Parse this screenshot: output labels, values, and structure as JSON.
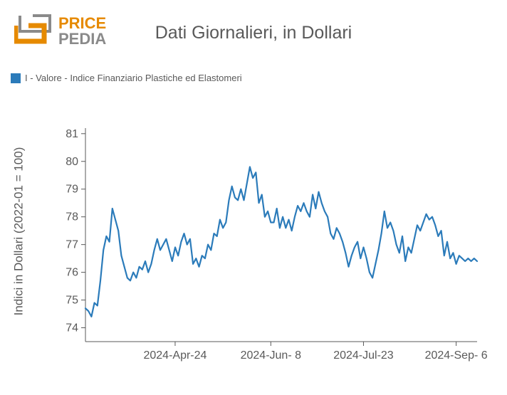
{
  "logo": {
    "text_top": "PRICE",
    "text_bottom": "PEDIA",
    "color_top": "#e68a00",
    "color_bottom": "#8a8a8a",
    "mark_color_outer": "#8a8a8a",
    "mark_color_inner": "#e68a00"
  },
  "title": "Dati Giornalieri, in Dollari",
  "legend": {
    "swatch_color": "#2b7bba",
    "label": "I - Valore - Indice Finanziario Plastiche ed Elastomeri"
  },
  "chart": {
    "type": "line",
    "line_color": "#2b7bba",
    "line_width": 2.2,
    "background_color": "#ffffff",
    "axis_color": "#595959",
    "axis_width": 1,
    "ylabel": "Indici in Dollari (2022-01 = 100)",
    "ylabel_fontsize": 17,
    "tick_fontsize": 16,
    "ylim": [
      73.5,
      81.2
    ],
    "yticks": [
      74,
      75,
      76,
      77,
      78,
      79,
      80,
      81
    ],
    "xlim": [
      0,
      131
    ],
    "xticks": [
      {
        "pos": 30,
        "label": "2024-Apr-24"
      },
      {
        "pos": 62,
        "label": "2024-Jun- 8"
      },
      {
        "pos": 93,
        "label": "2024-Jul-23"
      },
      {
        "pos": 124,
        "label": "2024-Sep- 6"
      }
    ],
    "series": [
      74.7,
      74.6,
      74.4,
      74.9,
      74.8,
      75.7,
      76.8,
      77.3,
      77.1,
      78.3,
      77.9,
      77.5,
      76.6,
      76.2,
      75.8,
      75.7,
      76.0,
      75.8,
      76.2,
      76.1,
      76.4,
      76.0,
      76.3,
      76.8,
      77.2,
      76.8,
      77.0,
      77.2,
      76.8,
      76.4,
      76.9,
      76.6,
      77.1,
      77.4,
      77.0,
      77.2,
      76.3,
      76.5,
      76.2,
      76.6,
      76.5,
      77.0,
      76.8,
      77.4,
      77.3,
      77.9,
      77.6,
      77.8,
      78.6,
      79.1,
      78.7,
      78.6,
      79.0,
      78.6,
      79.2,
      79.8,
      79.4,
      79.6,
      78.5,
      78.8,
      78.0,
      78.2,
      77.8,
      77.8,
      78.3,
      77.6,
      78.0,
      77.6,
      77.9,
      77.5,
      78.0,
      78.4,
      78.2,
      78.5,
      78.2,
      78.0,
      78.8,
      78.3,
      78.9,
      78.5,
      78.2,
      78.0,
      77.4,
      77.2,
      77.6,
      77.4,
      77.1,
      76.7,
      76.2,
      76.6,
      76.9,
      77.1,
      76.5,
      76.9,
      76.5,
      76.0,
      75.8,
      76.3,
      76.8,
      77.4,
      78.2,
      77.6,
      77.8,
      77.5,
      77.0,
      76.7,
      77.3,
      76.4,
      76.9,
      76.7,
      77.2,
      77.7,
      77.5,
      77.8,
      78.1,
      77.9,
      78.0,
      77.7,
      77.3,
      77.5,
      76.6,
      77.1,
      76.5,
      76.7,
      76.3,
      76.6,
      76.5,
      76.4,
      76.5,
      76.4,
      76.5,
      76.4
    ]
  }
}
